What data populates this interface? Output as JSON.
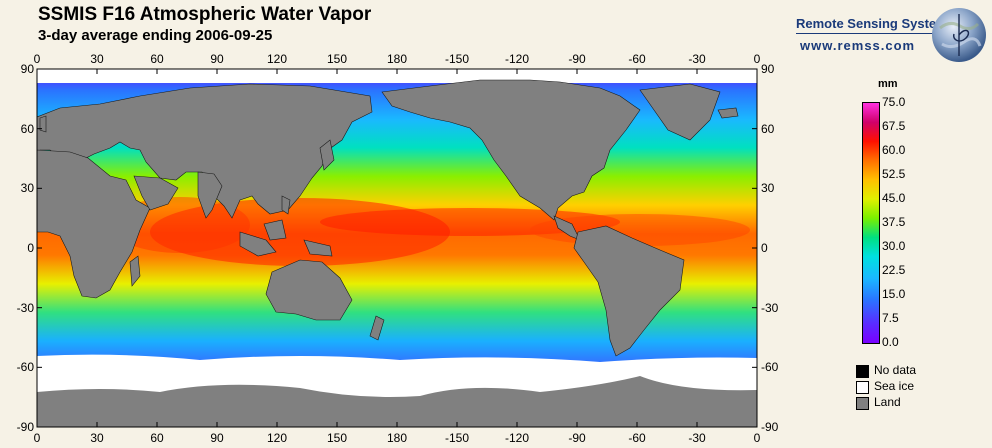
{
  "header": {
    "title": "SSMIS F16 Atmospheric Water Vapor",
    "subtitle": "3-day average ending 2006-09-25"
  },
  "brand": {
    "name": "Remote Sensing Systems",
    "url": "www.remss.com",
    "logo_icon": "globe-logo-icon",
    "color": "#1a3a7a"
  },
  "map": {
    "projection": "equirectangular",
    "lon_labels": [
      "0",
      "30",
      "60",
      "90",
      "120",
      "150",
      "180",
      "-150",
      "-120",
      "-90",
      "-60",
      "-30",
      "0"
    ],
    "lat_labels": [
      "90",
      "60",
      "30",
      "0",
      "-30",
      "-60",
      "-90"
    ],
    "colors": {
      "land": "#808080",
      "sea_ice": "#ffffff",
      "no_data": "#000000"
    }
  },
  "colorbar": {
    "unit": "mm",
    "min": 0.0,
    "max": 75.0,
    "labels": [
      "75.0",
      "67.5",
      "60.0",
      "52.5",
      "45.0",
      "37.5",
      "30.0",
      "22.5",
      "15.0",
      "7.5",
      "0.0"
    ]
  },
  "legend": [
    {
      "label": "No data",
      "color": "#000000"
    },
    {
      "label": "Sea ice",
      "color": "#ffffff"
    },
    {
      "label": "Land",
      "color": "#808080"
    }
  ]
}
